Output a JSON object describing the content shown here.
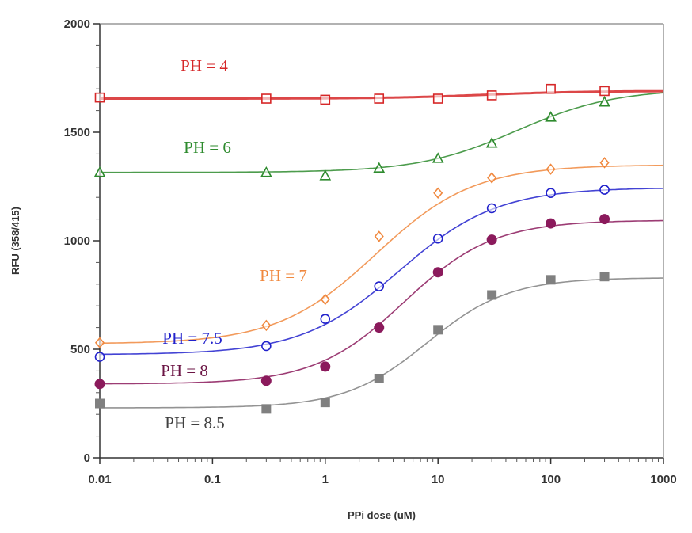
{
  "chart_data": {
    "type": "line",
    "xscale": "log",
    "xlabel": "PPi dose (uM)",
    "ylabel": "RFU (358/415)",
    "xlim": [
      0.01,
      1000
    ],
    "ylim": [
      0,
      2000
    ],
    "xticks": [
      0.01,
      0.1,
      1,
      10,
      100,
      1000
    ],
    "xtick_labels": [
      "0.01",
      "0.1",
      "1",
      "10",
      "100",
      "1000"
    ],
    "yticks": [
      0,
      500,
      1000,
      1500,
      2000
    ],
    "ytick_labels": [
      "0",
      "500",
      "1000",
      "1500",
      "2000"
    ],
    "grid": false,
    "series": [
      {
        "name": "PH = 4",
        "color": "#d62728",
        "marker": "open-square",
        "x": [
          0.01,
          0.3,
          1,
          3,
          10,
          30,
          100,
          300
        ],
        "y": [
          1660,
          1655,
          1650,
          1655,
          1655,
          1670,
          1700,
          1690
        ],
        "fit": {
          "bottom": 1655,
          "top": 1690,
          "ec50": 25,
          "hill": 1
        }
      },
      {
        "name": "PH = 6",
        "color": "#2e8b2e",
        "marker": "open-triangle",
        "x": [
          0.01,
          0.3,
          1,
          3,
          10,
          30,
          100,
          300
        ],
        "y": [
          1315,
          1315,
          1300,
          1335,
          1380,
          1450,
          1570,
          1640
        ],
        "fit": {
          "bottom": 1315,
          "top": 1700,
          "ec50": 50,
          "hill": 1
        }
      },
      {
        "name": "PH = 7",
        "color": "#f0883e",
        "marker": "open-diamond",
        "x": [
          0.01,
          0.3,
          1,
          3,
          10,
          30,
          100,
          300
        ],
        "y": [
          530,
          610,
          730,
          1020,
          1220,
          1290,
          1330,
          1360
        ],
        "fit": {
          "bottom": 525,
          "top": 1350,
          "ec50": 2.8,
          "hill": 1
        }
      },
      {
        "name": "PH = 7.5",
        "color": "#2222cc",
        "marker": "open-circle",
        "x": [
          0.01,
          0.3,
          1,
          3,
          10,
          30,
          100,
          300
        ],
        "y": [
          465,
          515,
          640,
          790,
          1010,
          1150,
          1220,
          1235
        ],
        "fit": {
          "bottom": 475,
          "top": 1245,
          "ec50": 4.5,
          "hill": 1
        }
      },
      {
        "name": "PH = 8",
        "color": "#8b1a5c",
        "marker": "filled-circle",
        "x": [
          0.01,
          0.3,
          1,
          3,
          10,
          30,
          100,
          300
        ],
        "y": [
          340,
          355,
          420,
          600,
          855,
          1005,
          1080,
          1100
        ],
        "fit": {
          "bottom": 340,
          "top": 1095,
          "ec50": 5,
          "hill": 1.1
        }
      },
      {
        "name": "PH = 8.5",
        "color": "#808080",
        "marker": "filled-square",
        "x": [
          0.01,
          0.3,
          1,
          3,
          10,
          30,
          100,
          300
        ],
        "y": [
          250,
          225,
          255,
          365,
          590,
          750,
          820,
          835
        ],
        "fit": {
          "bottom": 230,
          "top": 830,
          "ec50": 8,
          "hill": 1.2
        }
      }
    ],
    "labels": [
      {
        "text": "PH = 4",
        "color": "#d62728"
      },
      {
        "text": "PH = 6",
        "color": "#2e8b2e"
      },
      {
        "text": "PH = 7",
        "color": "#f0883e"
      },
      {
        "text": "PH = 7.5",
        "color": "#2222cc"
      },
      {
        "text": "PH = 8",
        "color": "#6b1545"
      },
      {
        "text": "PH = 8.5",
        "color": "#404040"
      }
    ]
  }
}
